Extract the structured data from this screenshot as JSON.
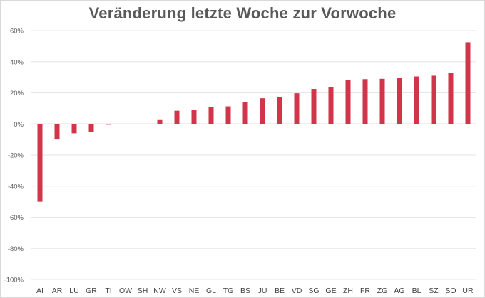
{
  "chart_data": {
    "type": "bar",
    "title": "Veränderung letzte Woche zur Vorwoche",
    "xlabel": "",
    "ylabel": "",
    "ylim": [
      -100,
      60
    ],
    "yticks": [
      60,
      40,
      20,
      0,
      -20,
      -40,
      -60,
      -80,
      -100
    ],
    "ytick_labels": [
      "60%",
      "40%",
      "20%",
      "0%",
      "-20%",
      "-40%",
      "-60%",
      "-80%",
      "-100%"
    ],
    "grid": true,
    "legend": "none",
    "bar_color": "#d1354a",
    "categories": [
      "AI",
      "AR",
      "LU",
      "GR",
      "TI",
      "OW",
      "SH",
      "NW",
      "VS",
      "NE",
      "GL",
      "TG",
      "BS",
      "JU",
      "BE",
      "VD",
      "SG",
      "GE",
      "ZH",
      "FR",
      "ZG",
      "AG",
      "BL",
      "SZ",
      "SO",
      "UR"
    ],
    "values": [
      -50,
      -10,
      -6,
      -5,
      -0.5,
      0,
      0,
      2.5,
      8.5,
      9,
      11,
      11.3,
      14,
      16.5,
      17.5,
      19.7,
      22.5,
      23.7,
      28,
      28.8,
      29,
      29.8,
      30.5,
      31,
      33,
      52.5
    ]
  }
}
